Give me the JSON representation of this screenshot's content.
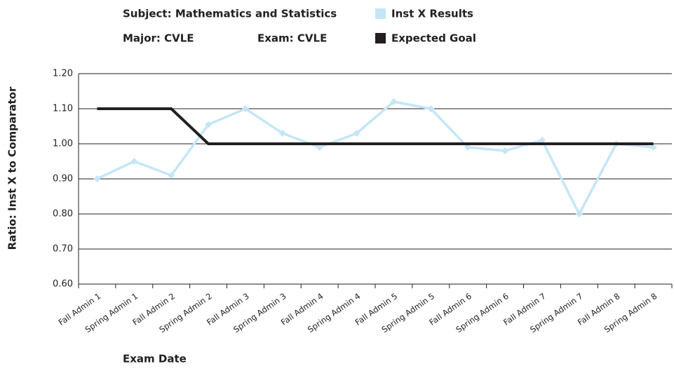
{
  "chart_data": {
    "type": "line",
    "subject": "Subject: Mathematics and Statistics",
    "major": "Major: CVLE",
    "exam": "Exam: CVLE",
    "y_label": "Ratio: Inst X to Comparator",
    "x_label": "Exam Date",
    "categories": [
      "Fall Admin 1",
      "Spring Admin 1",
      "Fall Admin 2",
      "Spring Admin 2",
      "Fall Admin 3",
      "Spring Admin 3",
      "Fall Admin 4",
      "Spring Admin 4",
      "Fall Admin 5",
      "Spring Admin 5",
      "Fall Admin 6",
      "Spring Admin 6",
      "Fall Admin 7",
      "Spring Admin 7",
      "Fall Admin 8",
      "Spring Admin 8"
    ],
    "series": [
      {
        "name": "Inst X Results",
        "color": "#c5e6f7",
        "markers": true,
        "values": [
          0.9,
          0.95,
          0.91,
          1.055,
          1.1,
          1.03,
          0.99,
          1.03,
          1.12,
          1.1,
          0.99,
          0.98,
          1.01,
          0.8,
          1.0,
          0.99
        ]
      },
      {
        "name": "Expected Goal",
        "color": "#231f20",
        "markers": false,
        "values": [
          1.1,
          1.1,
          1.1,
          1.0,
          1.0,
          1.0,
          1.0,
          1.0,
          1.0,
          1.0,
          1.0,
          1.0,
          1.0,
          1.0,
          1.0,
          1.0
        ]
      }
    ],
    "ylim": [
      0.6,
      1.2
    ],
    "yticks": [
      {
        "value": 0.6,
        "label": "0.60"
      },
      {
        "value": 0.7,
        "label": "0.70"
      },
      {
        "value": 0.8,
        "label": "0.80"
      },
      {
        "value": 0.9,
        "label": "0.90"
      },
      {
        "value": 1.0,
        "label": "1.00"
      },
      {
        "value": 1.1,
        "label": "1.10"
      },
      {
        "value": 1.2,
        "label": "1.20"
      }
    ],
    "grid": true,
    "legend": "top"
  }
}
